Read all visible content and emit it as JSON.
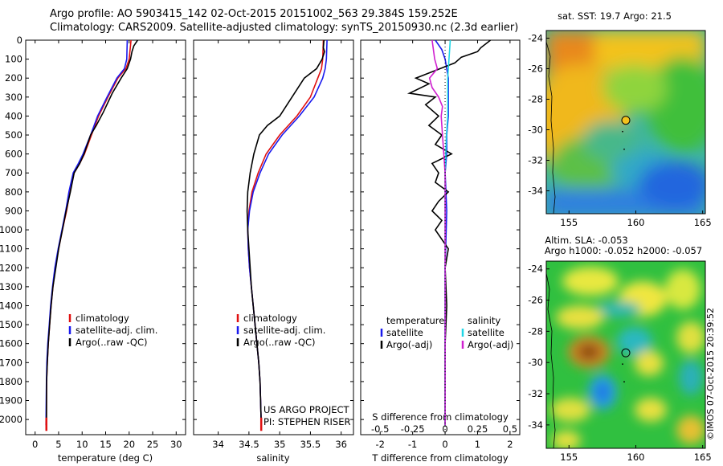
{
  "header": {
    "line1": "Argo profile: AO 5903415_142 02-Oct-2015 20151002_563 29.384S 159.252E",
    "line2": "Climatology: CARS2009. Satellite-adjusted climatology: synTS_20150930.nc (2.3d earlier)"
  },
  "stamp": "©IMOS 07-Oct-2015 20:39:52",
  "project": {
    "line1": "US ARGO PROJECT",
    "line2": "PI: STEPHEN RISER"
  },
  "colors": {
    "climatology": "#e01010",
    "satellite": "#1a1aee",
    "argo": "#000000",
    "sal_satellite": "#1fd6e6",
    "sal_argo": "#d020d0"
  },
  "chart_data": [
    {
      "type": "line",
      "xlabel": "temperature (deg C)",
      "xlim": [
        -2,
        32
      ],
      "ylim": [
        2080,
        0
      ],
      "xticks": [
        0,
        5,
        10,
        15,
        20,
        25,
        30
      ],
      "yticks": [
        0,
        100,
        200,
        300,
        400,
        500,
        600,
        700,
        800,
        900,
        1000,
        1100,
        1200,
        1300,
        1400,
        1500,
        1600,
        1700,
        1800,
        1900,
        2000
      ],
      "legend": [
        "climatology",
        "satellite-adj. clim.",
        "Argo(..raw -QC)"
      ],
      "series": [
        {
          "name": "climatology",
          "x": [
            20.4,
            20.0,
            19.3,
            17.6,
            15.5,
            13.5,
            12.0,
            10.5,
            9.5,
            8.3,
            7.4,
            6.7,
            5.8,
            5.0,
            4.3,
            3.8,
            3.4,
            3.1,
            2.8,
            2.6,
            2.45,
            2.4
          ],
          "y": [
            0,
            100,
            150,
            200,
            300,
            400,
            500,
            600,
            650,
            700,
            800,
            900,
            1000,
            1100,
            1200,
            1300,
            1400,
            1500,
            1600,
            1700,
            1800,
            2030
          ]
        },
        {
          "name": "satellite-adj. clim.",
          "x": [
            19.6,
            19.5,
            19.0,
            17.4,
            15.3,
            13.3,
            11.8,
            10.2,
            9.2,
            8.1,
            7.2,
            6.5,
            5.7,
            4.9,
            4.2,
            3.7,
            3.3,
            3.0,
            2.7,
            2.5,
            2.4,
            2.3
          ],
          "y": [
            0,
            100,
            150,
            200,
            300,
            400,
            500,
            600,
            650,
            700,
            800,
            900,
            1000,
            1100,
            1200,
            1300,
            1400,
            1500,
            1600,
            1700,
            1800,
            2030
          ]
        },
        {
          "name": "Argo(..raw -QC)",
          "x": [
            21.8,
            21.0,
            20.6,
            20.3,
            19.6,
            18.3,
            16.4,
            14.5,
            13.0,
            11.8,
            10.4,
            9.5,
            8.3,
            7.5,
            6.6,
            5.8,
            5.0,
            4.4,
            3.8,
            3.4,
            3.1,
            2.8,
            2.6,
            2.45,
            2.4
          ],
          "y": [
            0,
            30,
            60,
            100,
            150,
            200,
            280,
            380,
            450,
            500,
            600,
            650,
            700,
            800,
            900,
            1000,
            1100,
            1200,
            1300,
            1400,
            1500,
            1600,
            1700,
            1800,
            2030
          ]
        }
      ]
    },
    {
      "type": "line",
      "xlabel": "salinity",
      "xlim": [
        33.6,
        36.2
      ],
      "ylim": [
        2080,
        0
      ],
      "xticks": [
        34,
        34.5,
        35,
        35.5,
        36
      ],
      "xtick_labels": [
        "34",
        "34.5",
        "35",
        "35.5",
        "36"
      ],
      "legend": [
        "climatology",
        "satellite-adj. clim.",
        "Argo(..raw -QC)"
      ],
      "series": [
        {
          "name": "climatology",
          "x": [
            35.71,
            35.7,
            35.68,
            35.62,
            35.5,
            35.28,
            35.0,
            34.78,
            34.65,
            34.55,
            34.5,
            34.48,
            34.49,
            34.51,
            34.54,
            34.57,
            34.6,
            34.63,
            34.66,
            34.68,
            34.69,
            34.7
          ],
          "y": [
            0,
            100,
            150,
            200,
            300,
            400,
            500,
            600,
            700,
            800,
            900,
            1000,
            1100,
            1200,
            1300,
            1400,
            1500,
            1600,
            1700,
            1800,
            1900,
            2030
          ]
        },
        {
          "name": "satellite-adj. clim.",
          "x": [
            35.77,
            35.76,
            35.74,
            35.7,
            35.56,
            35.32,
            35.04,
            34.82,
            34.68,
            34.57,
            34.51,
            34.48,
            34.49,
            34.51,
            34.54,
            34.57,
            34.6,
            34.63,
            34.66,
            34.68,
            34.69,
            34.7
          ],
          "y": [
            0,
            100,
            150,
            200,
            300,
            400,
            500,
            600,
            700,
            800,
            900,
            1000,
            1100,
            1200,
            1300,
            1400,
            1500,
            1600,
            1700,
            1800,
            1900,
            2030
          ]
        },
        {
          "name": "Argo(..raw -QC)",
          "x": [
            35.72,
            35.71,
            35.73,
            35.69,
            35.6,
            35.4,
            35.2,
            35.0,
            34.8,
            34.67,
            34.58,
            34.52,
            34.48,
            34.47,
            34.48,
            34.5,
            34.52,
            34.54,
            34.57,
            34.6,
            34.63,
            34.66,
            34.68,
            34.69,
            34.7
          ],
          "y": [
            0,
            40,
            60,
            100,
            150,
            200,
            300,
            400,
            450,
            500,
            600,
            700,
            800,
            900,
            1000,
            1100,
            1200,
            1300,
            1400,
            1500,
            1600,
            1700,
            1800,
            1900,
            2030
          ]
        }
      ]
    },
    {
      "type": "line",
      "xlabel": "T difference from climatology",
      "xlabel_top": "S difference from climatology",
      "xlim": [
        -2.6,
        2.3
      ],
      "ylim": [
        2080,
        0
      ],
      "xticks": [
        -2,
        -1,
        0,
        1,
        2
      ],
      "top_ticks": [
        -0.5,
        -0.25,
        0,
        0.25,
        0.5
      ],
      "legend_temperature": [
        "temperature",
        "satellite",
        "Argo(-adj)"
      ],
      "legend_salinity": [
        "salinity",
        "satellite",
        "Argo(-adj)"
      ],
      "series": [
        {
          "name": "temperature satellite",
          "x": [
            -0.3,
            -0.1,
            0.0,
            0.1,
            0.1,
            0.1,
            0.05,
            0.05,
            0.0,
            0.05,
            0.0,
            0.0
          ],
          "y": [
            0,
            50,
            100,
            200,
            300,
            400,
            500,
            600,
            700,
            900,
            1200,
            2030
          ]
        },
        {
          "name": "temperature Argo(-adj)",
          "x": [
            1.4,
            1.1,
            1.0,
            0.5,
            0.3,
            -0.3,
            -0.6,
            -0.9,
            -0.5,
            -1.1,
            -0.3,
            -0.6,
            -0.2,
            -0.5,
            -0.1,
            -0.3,
            0.2,
            -0.4,
            -0.2,
            -0.3,
            0.1,
            -0.2,
            -0.4,
            -0.1,
            -0.3,
            0.1,
            0.0,
            0.05,
            0.0,
            0.0
          ],
          "y": [
            0,
            40,
            60,
            90,
            120,
            160,
            180,
            200,
            230,
            280,
            300,
            340,
            400,
            450,
            500,
            550,
            600,
            650,
            700,
            750,
            800,
            850,
            900,
            950,
            1000,
            1100,
            1200,
            1400,
            1600,
            2030
          ]
        },
        {
          "name": "salinity satellite",
          "x": [
            0.04,
            0.03,
            0.02,
            0.02,
            0.02,
            0.01,
            0.0,
            0.0,
            0.0,
            0.0
          ],
          "y": [
            0,
            100,
            200,
            300,
            400,
            500,
            700,
            900,
            1200,
            2030
          ]
        },
        {
          "name": "salinity Argo(-adj)",
          "x": [
            -0.1,
            -0.08,
            -0.06,
            -0.12,
            -0.1,
            -0.05,
            -0.02,
            -0.03,
            -0.02,
            0.0,
            0.0
          ],
          "y": [
            0,
            100,
            150,
            200,
            250,
            300,
            350,
            400,
            500,
            700,
            2030
          ]
        }
      ]
    },
    {
      "type": "heatmap",
      "title": "sat. SST: 19.7 Argo: 21.5",
      "xlim": [
        153.3,
        165.2
      ],
      "ylim": [
        -35.5,
        -23.5
      ],
      "xticks": [
        155,
        160,
        165
      ],
      "yticks": [
        -24,
        -26,
        -28,
        -30,
        -32,
        -34
      ],
      "argo_position": [
        159.25,
        -29.38
      ]
    },
    {
      "type": "heatmap",
      "title": "Altim. SLA: -0.053",
      "subtitle": "Argo h1000: -0.052 h2000: -0.057",
      "xlim": [
        153.3,
        165.2
      ],
      "ylim": [
        -35.5,
        -23.5
      ],
      "xticks": [
        155,
        160,
        165
      ],
      "yticks": [
        -24,
        -26,
        -28,
        -30,
        -32,
        -34
      ],
      "argo_position": [
        159.25,
        -29.38
      ]
    }
  ]
}
